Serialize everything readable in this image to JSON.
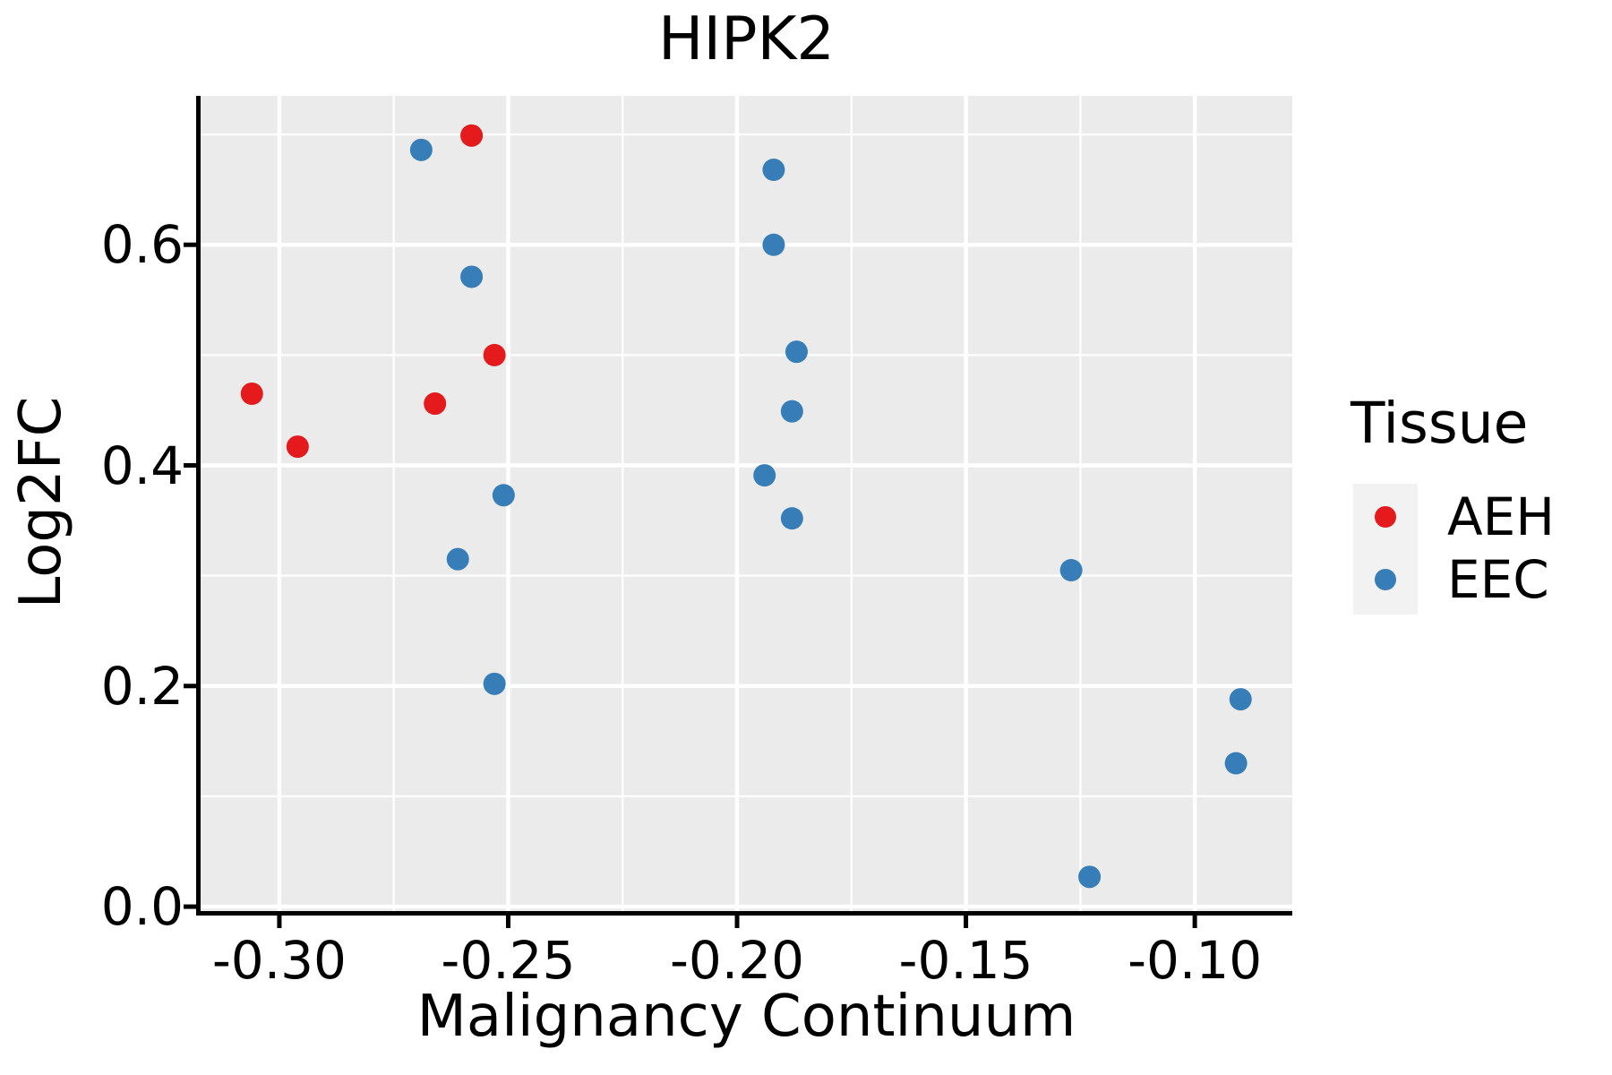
{
  "chart_data": {
    "type": "scatter",
    "title": "HIPK2",
    "xlabel": "Malignancy Continuum",
    "ylabel": "Log2FC",
    "legend": {
      "title": "Tissue",
      "position": "right"
    },
    "xlim": [
      -0.3172,
      -0.0787
    ],
    "ylim": [
      -0.004,
      0.735
    ],
    "x_ticks": {
      "values": [
        -0.3,
        -0.25,
        -0.2,
        -0.15,
        -0.1
      ],
      "labels": [
        "-0.30",
        "-0.25",
        "-0.20",
        "-0.15",
        "-0.10"
      ],
      "minor": [
        -0.275,
        -0.225,
        -0.175,
        -0.125
      ]
    },
    "y_ticks": {
      "values": [
        0.0,
        0.2,
        0.4,
        0.6
      ],
      "labels": [
        "0.0",
        "0.2",
        "0.4",
        "0.6"
      ],
      "minor": [
        0.1,
        0.3,
        0.5,
        0.7
      ]
    },
    "grid": true,
    "panel_bg": "#ebebeb",
    "grid_color": "#ffffff",
    "axis_color": "#000000",
    "legend_key_bg": "#f2f2f2",
    "series": [
      {
        "name": "AEH",
        "color": "#e41a1c",
        "points": [
          [
            -0.306,
            0.465
          ],
          [
            -0.296,
            0.417
          ],
          [
            -0.266,
            0.456
          ],
          [
            -0.258,
            0.699
          ],
          [
            -0.253,
            0.5
          ]
        ]
      },
      {
        "name": "EEC",
        "color": "#377eb8",
        "points": [
          [
            -0.269,
            0.686
          ],
          [
            -0.258,
            0.571
          ],
          [
            -0.261,
            0.315
          ],
          [
            -0.251,
            0.373
          ],
          [
            -0.253,
            0.202
          ],
          [
            -0.192,
            0.668
          ],
          [
            -0.192,
            0.6
          ],
          [
            -0.194,
            0.391
          ],
          [
            -0.188,
            0.449
          ],
          [
            -0.187,
            0.503
          ],
          [
            -0.188,
            0.352
          ],
          [
            -0.127,
            0.305
          ],
          [
            -0.123,
            0.027
          ],
          [
            -0.091,
            0.13
          ],
          [
            -0.09,
            0.188
          ]
        ]
      }
    ]
  }
}
